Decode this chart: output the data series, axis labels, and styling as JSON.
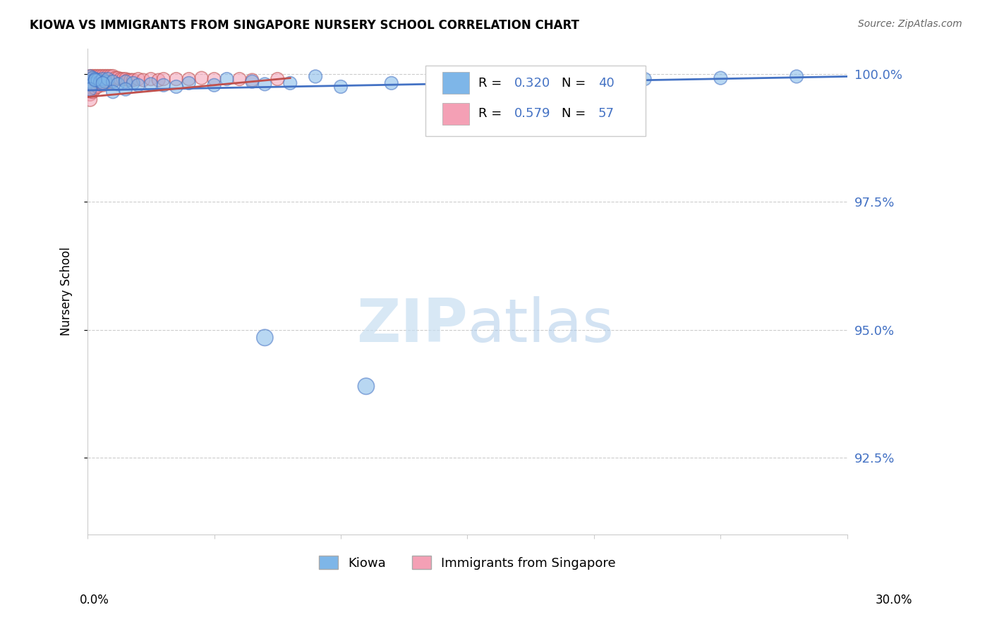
{
  "title": "KIOWA VS IMMIGRANTS FROM SINGAPORE NURSERY SCHOOL CORRELATION CHART",
  "source": "Source: ZipAtlas.com",
  "ylabel": "Nursery School",
  "ytick_vals": [
    1.0,
    0.975,
    0.95,
    0.925
  ],
  "ytick_labels": [
    "100.0%",
    "97.5%",
    "95.0%",
    "92.5%"
  ],
  "legend_label1": "Kiowa",
  "legend_label2": "Immigrants from Singapore",
  "color_blue": "#7EB6E8",
  "color_pink": "#F4A0B5",
  "color_trendline_blue": "#4472C4",
  "color_trendline_pink": "#C0504D",
  "xlim": [
    0.0,
    0.3
  ],
  "ylim": [
    0.91,
    1.005
  ],
  "kiowa_x": [
    0.001,
    0.001,
    0.002,
    0.002,
    0.003,
    0.004,
    0.005,
    0.006,
    0.007,
    0.008,
    0.01,
    0.012,
    0.015,
    0.018,
    0.02,
    0.025,
    0.03,
    0.035,
    0.04,
    0.05,
    0.055,
    0.065,
    0.07,
    0.08,
    0.09,
    0.1,
    0.12,
    0.15,
    0.17,
    0.22,
    0.25,
    0.28,
    0.001,
    0.003,
    0.006,
    0.01,
    0.015,
    0.07,
    0.11,
    0.17
  ],
  "kiowa_y": [
    0.9995,
    0.9985,
    0.9992,
    0.998,
    0.999,
    0.9988,
    0.9985,
    0.999,
    0.9985,
    0.999,
    0.9985,
    0.998,
    0.9985,
    0.9982,
    0.9978,
    0.998,
    0.9978,
    0.9975,
    0.9982,
    0.9978,
    0.999,
    0.9985,
    0.998,
    0.9982,
    0.9995,
    0.9975,
    0.9982,
    0.999,
    0.9985,
    0.999,
    0.9992,
    0.9995,
    0.997,
    0.9988,
    0.9982,
    0.9965,
    0.997,
    0.9485,
    0.939,
    0.999
  ],
  "kiowa_s": [
    180,
    180,
    180,
    180,
    180,
    180,
    180,
    180,
    180,
    180,
    180,
    180,
    180,
    180,
    180,
    180,
    180,
    180,
    180,
    180,
    180,
    180,
    180,
    180,
    180,
    180,
    180,
    180,
    180,
    180,
    180,
    180,
    180,
    180,
    180,
    180,
    180,
    280,
    280,
    180
  ],
  "sing_x": [
    0.001,
    0.001,
    0.001,
    0.001,
    0.001,
    0.001,
    0.001,
    0.001,
    0.001,
    0.002,
    0.002,
    0.002,
    0.002,
    0.002,
    0.002,
    0.003,
    0.003,
    0.003,
    0.003,
    0.004,
    0.004,
    0.004,
    0.004,
    0.005,
    0.005,
    0.005,
    0.006,
    0.006,
    0.006,
    0.007,
    0.007,
    0.008,
    0.008,
    0.009,
    0.009,
    0.01,
    0.01,
    0.011,
    0.012,
    0.013,
    0.014,
    0.015,
    0.016,
    0.017,
    0.018,
    0.02,
    0.022,
    0.025,
    0.028,
    0.03,
    0.035,
    0.04,
    0.045,
    0.05,
    0.06,
    0.065,
    0.075
  ],
  "sing_y": [
    0.9995,
    0.999,
    0.9985,
    0.998,
    0.9975,
    0.997,
    0.9965,
    0.996,
    0.995,
    0.9995,
    0.999,
    0.9985,
    0.9978,
    0.9972,
    0.9965,
    0.9995,
    0.9988,
    0.998,
    0.9972,
    0.9995,
    0.9988,
    0.9982,
    0.9975,
    0.9995,
    0.9988,
    0.998,
    0.9995,
    0.9988,
    0.9978,
    0.9995,
    0.9985,
    0.9995,
    0.9985,
    0.9995,
    0.9985,
    0.9995,
    0.9985,
    0.9992,
    0.9992,
    0.999,
    0.999,
    0.999,
    0.9988,
    0.9988,
    0.9988,
    0.999,
    0.9988,
    0.999,
    0.9988,
    0.999,
    0.999,
    0.999,
    0.9992,
    0.999,
    0.999,
    0.9988,
    0.999
  ],
  "sing_s": [
    200,
    200,
    180,
    200,
    180,
    180,
    180,
    180,
    200,
    200,
    200,
    180,
    180,
    180,
    180,
    200,
    180,
    180,
    180,
    200,
    180,
    180,
    180,
    200,
    180,
    180,
    200,
    180,
    180,
    200,
    180,
    200,
    180,
    200,
    180,
    200,
    180,
    180,
    180,
    180,
    180,
    180,
    180,
    180,
    180,
    180,
    180,
    180,
    180,
    180,
    180,
    180,
    180,
    180,
    180,
    180,
    180
  ],
  "kiowa_trend_x": [
    0.0,
    0.3
  ],
  "kiowa_trend_y": [
    0.9968,
    0.9995
  ],
  "sing_trend_x": [
    0.0,
    0.08
  ],
  "sing_trend_y": [
    0.9955,
    0.9992
  ]
}
